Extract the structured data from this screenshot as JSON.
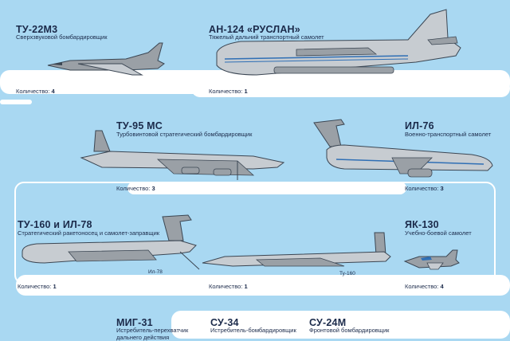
{
  "colors": {
    "sky": "#a9d8f2",
    "panel": "#ffffff",
    "text": "#1b2a4a",
    "aircraft_gray": "#9aa0a6",
    "aircraft_light": "#d2d6da",
    "stripe_blue": "#2f6fb5"
  },
  "quantity_label": "Количество:",
  "aircraft": [
    {
      "name": "ТУ-22М3",
      "desc": "Сверхзвуковой бомбардировщик",
      "qty": "4",
      "icon": "supersonic-bomber-icon"
    },
    {
      "name": "АН-124 «РУСЛАН»",
      "desc": "Тяжелый дальний транспортный самолет",
      "qty": "1",
      "icon": "heavy-transport-icon"
    },
    {
      "name": "ТУ-95 МС",
      "desc": "Турбовинтовой стратегический бомбардировщик",
      "qty": "3",
      "icon": "turboprop-bomber-icon"
    },
    {
      "name": "ИЛ-76",
      "desc": "Военно-транспортный самолет",
      "qty": "3",
      "icon": "military-transport-icon"
    },
    {
      "name": "ТУ-160 и ИЛ-78",
      "desc": "Стратегический ракетоносец и самолет-заправщик",
      "qty": "1",
      "icon": "tanker-aircraft-icon"
    },
    {
      "name": "ЯК-130",
      "desc": "Учебно-боевой самолет",
      "qty": "4",
      "icon": "trainer-jet-icon"
    },
    {
      "name": "МИГ-31",
      "desc": "Истребитель-перехватчик дальнего действия"
    },
    {
      "name": "СУ-34",
      "desc": "Истребитель-бомбардировщик"
    },
    {
      "name": "СУ-24М",
      "desc": "Фронтовой бомбардировщик"
    }
  ],
  "extra_qty": "1",
  "callouts": {
    "il78": "Ил-78",
    "tu160": "Ту-160"
  }
}
